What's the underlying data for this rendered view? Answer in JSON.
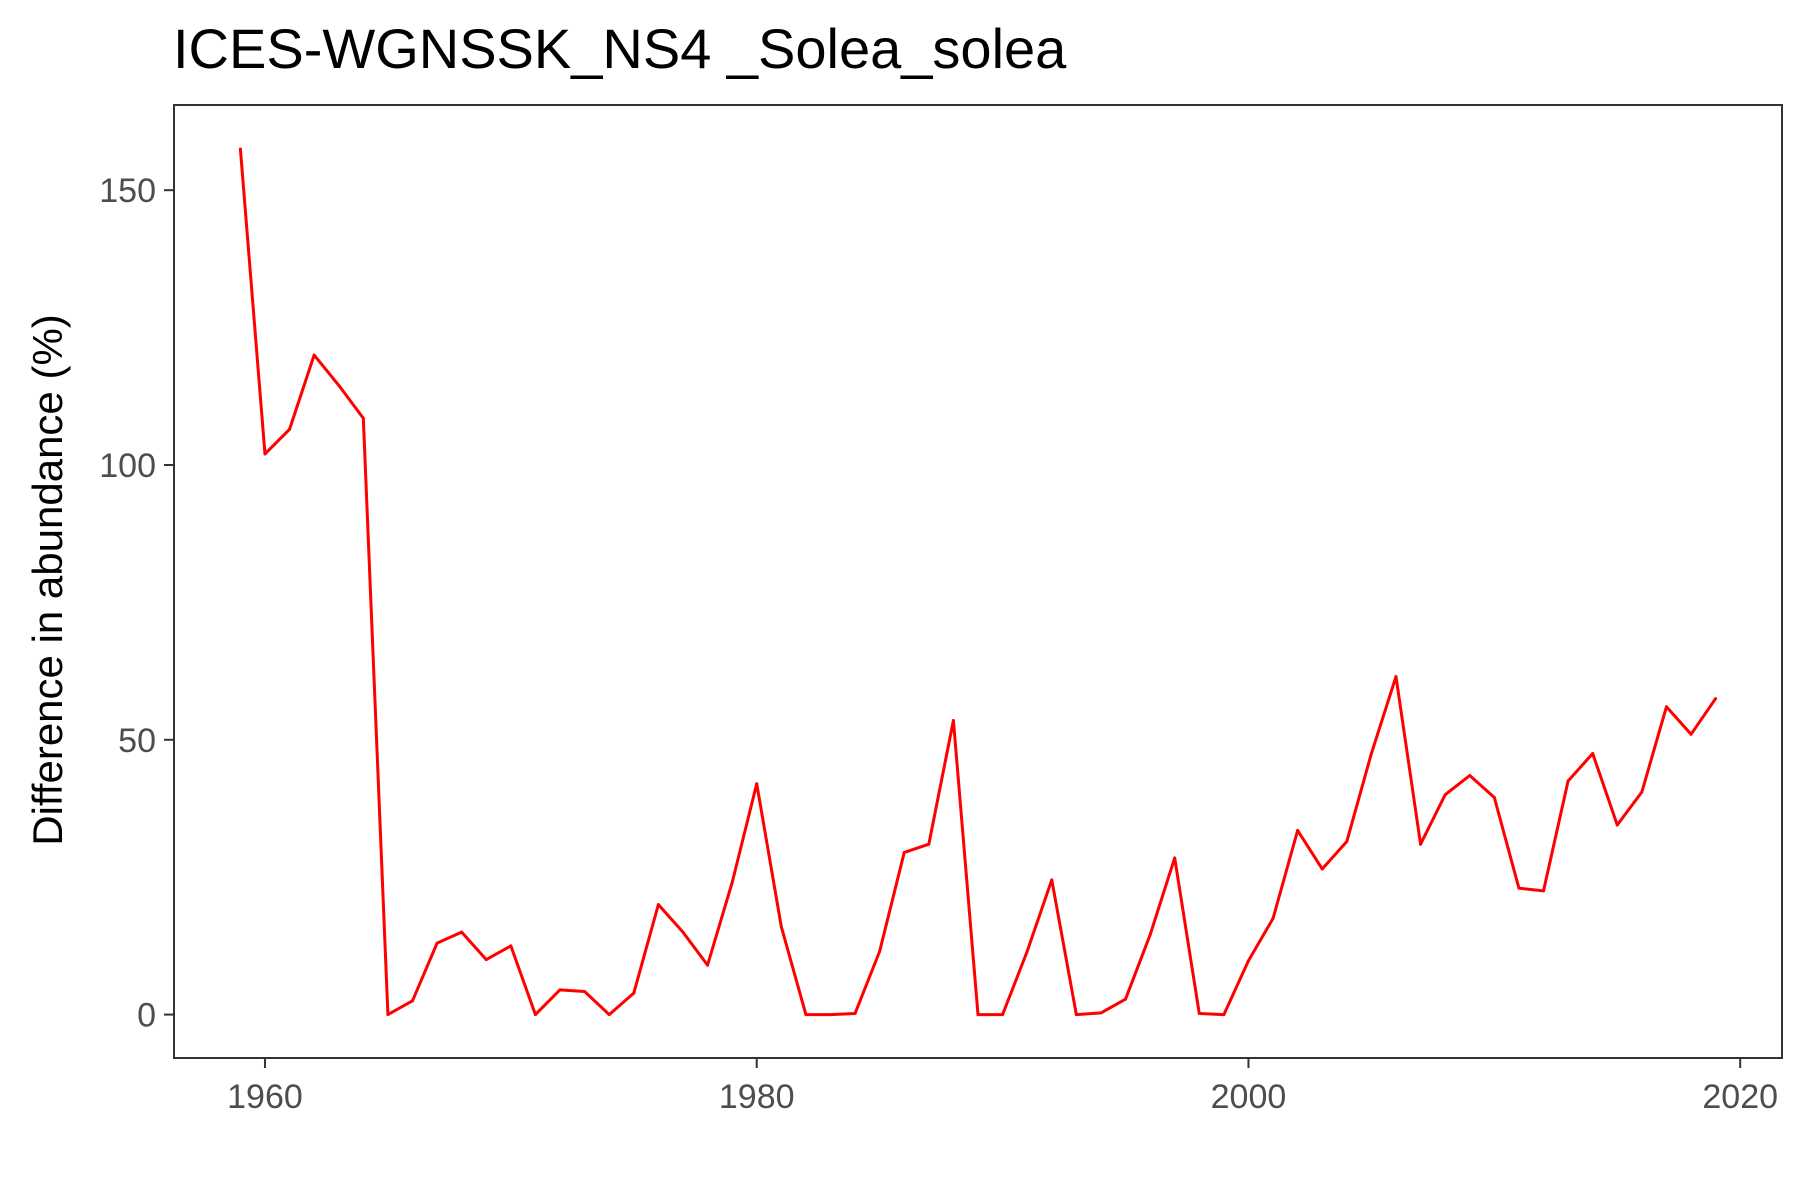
{
  "chart_data": {
    "type": "line",
    "title": "ICES-WGNSSK_NS4 _Solea_solea",
    "xlabel": "",
    "ylabel": "Difference in abundance (%)",
    "xlim": [
      1956.3,
      2021.7
    ],
    "ylim": [
      -7.9,
      165.5
    ],
    "x_ticks": [
      1960,
      1980,
      2000,
      2020
    ],
    "y_ticks": [
      0,
      50,
      100,
      150
    ],
    "grid": false,
    "legend": "none",
    "line_color": "#ff0000",
    "series": [
      {
        "x": [
          1959,
          1960,
          1961,
          1962,
          1963,
          1964,
          1965,
          1966,
          1967,
          1968,
          1969,
          1970,
          1971,
          1972,
          1973,
          1974,
          1975,
          1976,
          1977,
          1978,
          1979,
          1980,
          1981,
          1982,
          1983,
          1984,
          1985,
          1986,
          1987,
          1988,
          1989,
          1990,
          1991,
          1992,
          1993,
          1994,
          1995,
          1996,
          1997,
          1998,
          1999,
          2000,
          2001,
          2002,
          2003,
          2004,
          2005,
          2006,
          2007,
          2008,
          2009,
          2010,
          2011,
          2012,
          2013,
          2014,
          2015,
          2016,
          2017,
          2018,
          2019
        ],
        "values": [
          157.5,
          102,
          106.5,
          120,
          114.5,
          108.5,
          0,
          2.5,
          13,
          15,
          10,
          12.5,
          0,
          4.5,
          4.2,
          0,
          3.9,
          20,
          15,
          9,
          24,
          42,
          16,
          0,
          0,
          0.2,
          11.5,
          29.5,
          31,
          53.5,
          0,
          0,
          11.5,
          24.5,
          0,
          0.3,
          2.8,
          14.5,
          28.5,
          0.2,
          0,
          9.8,
          17.5,
          33.5,
          26.5,
          31.5,
          47.5,
          61.5,
          31,
          40,
          43.5,
          39.5,
          23,
          22.5,
          42.5,
          47.5,
          34.5,
          40.5,
          56,
          51,
          57.5
        ]
      }
    ]
  }
}
